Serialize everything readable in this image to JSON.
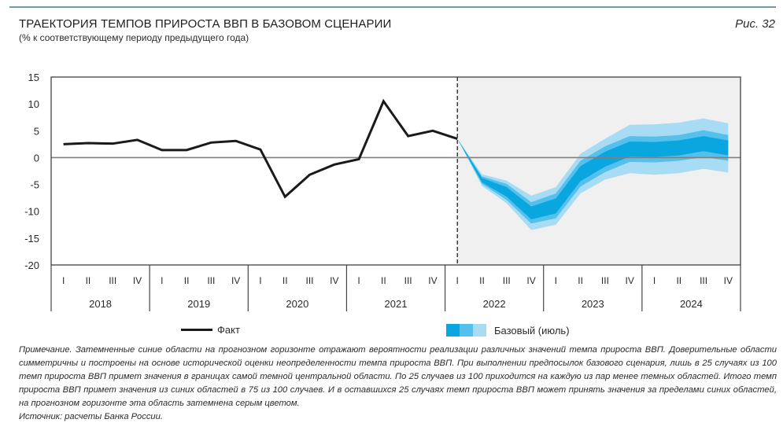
{
  "header": {
    "title": "ТРАЕКТОРИЯ ТЕМПОВ ПРИРОСТА ВВП В БАЗОВОМ СЦЕНАРИИ",
    "subtitle": "(% к соответствующему периоду предыдущего года)",
    "figure_label": "Рис. 32"
  },
  "legend": {
    "fact_label": "Факт",
    "base_label": "Базовый (июль)"
  },
  "colors": {
    "fact_line": "#1a1a1a",
    "band_dark": "#0aa6e0",
    "band_mid": "#55c0ec",
    "band_light": "#a8dcf4",
    "forecast_bg": "#f0f0f0",
    "zero_line": "#808080",
    "top_rule": "#6f9aa3"
  },
  "note": {
    "text": "Примечание. Затемненные синие области на прогнозном горизонте отражают вероятности реализации различных значений темпа прироста ВВП. Доверительные области симметричны и построены на основе исторической оценки неопределенности темпа прироста ВВП. При выполнении предпосылок базового сценария, лишь в 25 случаях из 100 темп прироста ВВП примет значения в границах самой темной центральной области. По 25 случаев из 100 приходится на каждую из пар менее темных областей. Итого темп прироста ВВП примет значения из синих областей в 75 из 100 случаев. И в оставшихся 25 случаях темп прироста ВВП может принять значения за пределами синих областей, на прогнозном горизонте эта область затемнена серым цветом.",
    "source": "Источник: расчеты Банка России."
  },
  "chart_data": {
    "type": "line",
    "title": "ТРАЕКТОРИЯ ТЕМПОВ ПРИРОСТА ВВП В БАЗОВОМ СЦЕНАРИИ",
    "subtitle": "(% к соответствующему периоду предыдущего года)",
    "xlabel": "",
    "ylabel": "",
    "ylim": [
      -20,
      15
    ],
    "yticks": [
      15,
      10,
      5,
      0,
      -5,
      -10,
      -15,
      -20
    ],
    "years": [
      "2018",
      "2019",
      "2020",
      "2021",
      "2022",
      "2023",
      "2024"
    ],
    "quarters": [
      "I",
      "II",
      "III",
      "IV"
    ],
    "categories": [
      "2018 I",
      "2018 II",
      "2018 III",
      "2018 IV",
      "2019 I",
      "2019 II",
      "2019 III",
      "2019 IV",
      "2020 I",
      "2020 II",
      "2020 III",
      "2020 IV",
      "2021 I",
      "2021 II",
      "2021 III",
      "2021 IV",
      "2022 I",
      "2022 II",
      "2022 III",
      "2022 IV",
      "2023 I",
      "2023 II",
      "2023 III",
      "2023 IV",
      "2024 I",
      "2024 II",
      "2024 III",
      "2024 IV"
    ],
    "forecast_start": "2022 I",
    "grid": false,
    "legend_position": "bottom",
    "series": [
      {
        "name": "Факт",
        "type": "line",
        "values": [
          2.5,
          2.7,
          2.6,
          3.3,
          1.4,
          1.4,
          2.8,
          3.1,
          1.5,
          -7.3,
          -3.2,
          -1.3,
          -0.3,
          10.5,
          4.0,
          5.0,
          3.5,
          null,
          null,
          null,
          null,
          null,
          null,
          null,
          null,
          null,
          null,
          null
        ]
      },
      {
        "name": "Базовый (июль)",
        "type": "fan",
        "x": [
          "2022 I",
          "2022 II",
          "2022 III",
          "2022 IV",
          "2023 I",
          "2023 II",
          "2023 III",
          "2023 IV",
          "2024 I",
          "2024 II",
          "2024 III",
          "2024 IV"
        ],
        "center": [
          3.5,
          -4.2,
          -6.4,
          -10.3,
          -9.0,
          -3.0,
          -0.3,
          1.6,
          1.5,
          1.8,
          2.6,
          1.8
        ],
        "half_width_dark": [
          0.0,
          0.4,
          0.9,
          1.2,
          1.4,
          1.4,
          1.4,
          1.4,
          1.4,
          1.4,
          1.4,
          1.4
        ],
        "half_width_mid": [
          0.0,
          0.7,
          1.5,
          2.0,
          2.3,
          2.4,
          2.4,
          2.4,
          2.4,
          2.4,
          2.5,
          2.4
        ],
        "half_width_light": [
          0.0,
          1.1,
          2.1,
          3.2,
          3.5,
          3.7,
          3.8,
          4.5,
          4.7,
          4.7,
          4.7,
          4.6
        ]
      }
    ]
  }
}
